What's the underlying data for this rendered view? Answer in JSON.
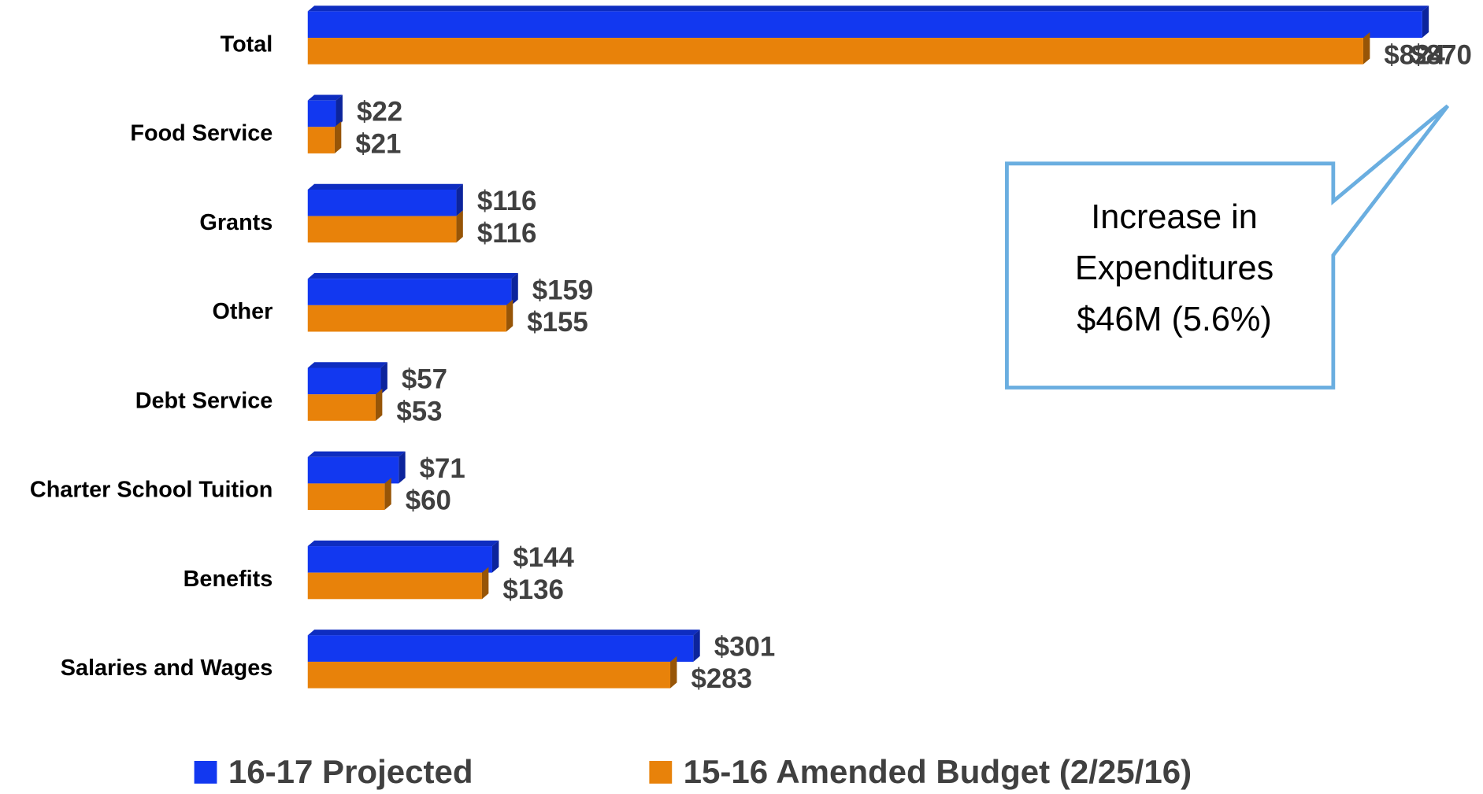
{
  "chart_data": {
    "type": "bar",
    "orientation": "horizontal",
    "categories": [
      "Total",
      "Food Service",
      "Grants",
      "Other",
      "Debt Service",
      "Charter School Tuition",
      "Benefits",
      "Salaries and Wages"
    ],
    "series": [
      {
        "name": "16-17 Projected",
        "color": "#1238f0",
        "values": [
          870,
          22,
          116,
          159,
          57,
          71,
          144,
          301
        ],
        "value_labels": [
          "$870",
          "$22",
          "$116",
          "$159",
          "$57",
          "$71",
          "$144",
          "$301"
        ]
      },
      {
        "name": "15-16 Amended Budget (2/25/16)",
        "color": "#e8820a",
        "values": [
          824,
          21,
          116,
          155,
          53,
          60,
          136,
          283
        ],
        "value_labels": [
          "$824",
          "$21",
          "$116",
          "$155",
          "$53",
          "$60",
          "$136",
          "$283"
        ]
      }
    ],
    "xlim": [
      0,
      870
    ],
    "legend": "bottom",
    "annotation": [
      "Increase in",
      "Expenditures",
      "$46M (5.6%)"
    ]
  }
}
